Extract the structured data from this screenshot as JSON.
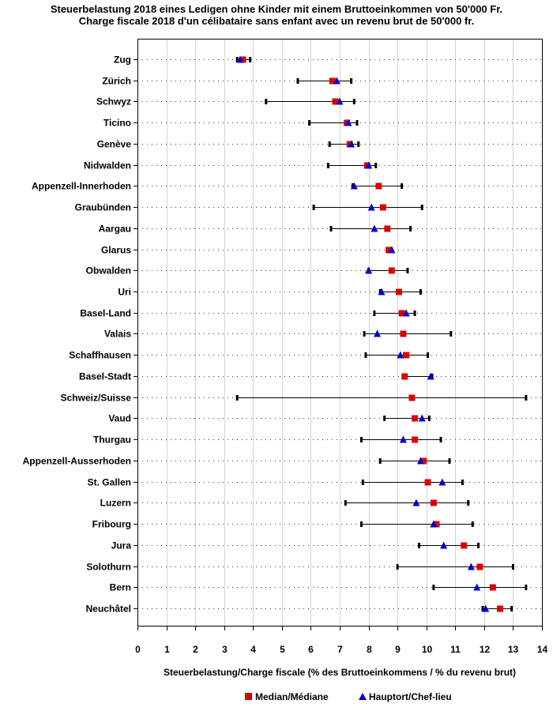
{
  "chart_data": {
    "type": "scatter",
    "title": "Steuerbelastung 2018 eines Ledigen ohne Kinder mit einem Bruttoeinkommen von 50'000 Fr.",
    "subtitle": "Charge fiscale 2018 d'un célibataire sans enfant avec un revenu brut de 50'000 fr.",
    "xlabel": "Steuerbelastung/Charge fiscale (% des Bruttoeinkommens / % du revenu brut)",
    "xlim": [
      0,
      14
    ],
    "xticks": [
      0,
      1,
      2,
      3,
      4,
      5,
      6,
      7,
      8,
      9,
      10,
      11,
      12,
      13,
      14
    ],
    "grid": true,
    "legend_position": "bottom-center",
    "colors": {
      "median": "#dd0000",
      "capital": "#0000cc",
      "range": "#000000",
      "grid": "#d3d3d3"
    },
    "legend": [
      {
        "key": "median",
        "label": "Median/Médiane",
        "marker": "square"
      },
      {
        "key": "capital",
        "label": "Hauptort/Chef-lieu",
        "marker": "triangle"
      }
    ],
    "categories": [
      "Zug",
      "Zürich",
      "Schwyz",
      "Ticino",
      "Genève",
      "Nidwalden",
      "Appenzell-Innerhoden",
      "Graubünden",
      "Aargau",
      "Glarus",
      "Obwalden",
      "Uri",
      "Basel-Land",
      "Valais",
      "Schaffhausen",
      "Basel-Stadt",
      "Schweiz/Suisse",
      "Vaud",
      "Thurgau",
      "Appenzell-Ausserhoden",
      "St. Gallen",
      "Luzern",
      "Fribourg",
      "Jura",
      "Solothurn",
      "Bern",
      "Neuchâtel"
    ],
    "min": [
      3.45,
      5.55,
      4.45,
      5.95,
      6.65,
      6.6,
      7.45,
      6.1,
      6.7,
      8.65,
      8.0,
      8.4,
      8.2,
      7.85,
      7.9,
      9.2,
      3.45,
      8.55,
      7.75,
      8.4,
      7.8,
      7.2,
      7.75,
      9.75,
      9.0,
      10.25,
      11.95
    ],
    "max": [
      3.9,
      7.4,
      7.5,
      7.6,
      7.65,
      8.25,
      9.15,
      9.85,
      9.45,
      8.8,
      9.35,
      9.8,
      9.6,
      10.85,
      10.05,
      10.2,
      13.45,
      10.1,
      10.5,
      10.8,
      11.25,
      11.45,
      11.6,
      11.8,
      13.0,
      13.45,
      12.95
    ],
    "median": [
      3.65,
      6.75,
      6.85,
      7.25,
      7.35,
      7.95,
      8.35,
      8.5,
      8.65,
      8.7,
      8.8,
      9.05,
      9.15,
      9.2,
      9.3,
      9.25,
      9.5,
      9.6,
      9.6,
      9.9,
      10.05,
      10.25,
      10.35,
      11.3,
      11.85,
      12.3,
      12.55
    ],
    "capital": [
      3.55,
      6.9,
      7.0,
      7.3,
      7.4,
      8.0,
      7.5,
      8.1,
      8.2,
      8.8,
      8.0,
      8.45,
      9.3,
      8.3,
      9.1,
      10.15,
      null,
      9.85,
      9.2,
      9.8,
      10.55,
      9.65,
      10.25,
      10.6,
      11.55,
      11.75,
      12.05
    ]
  }
}
